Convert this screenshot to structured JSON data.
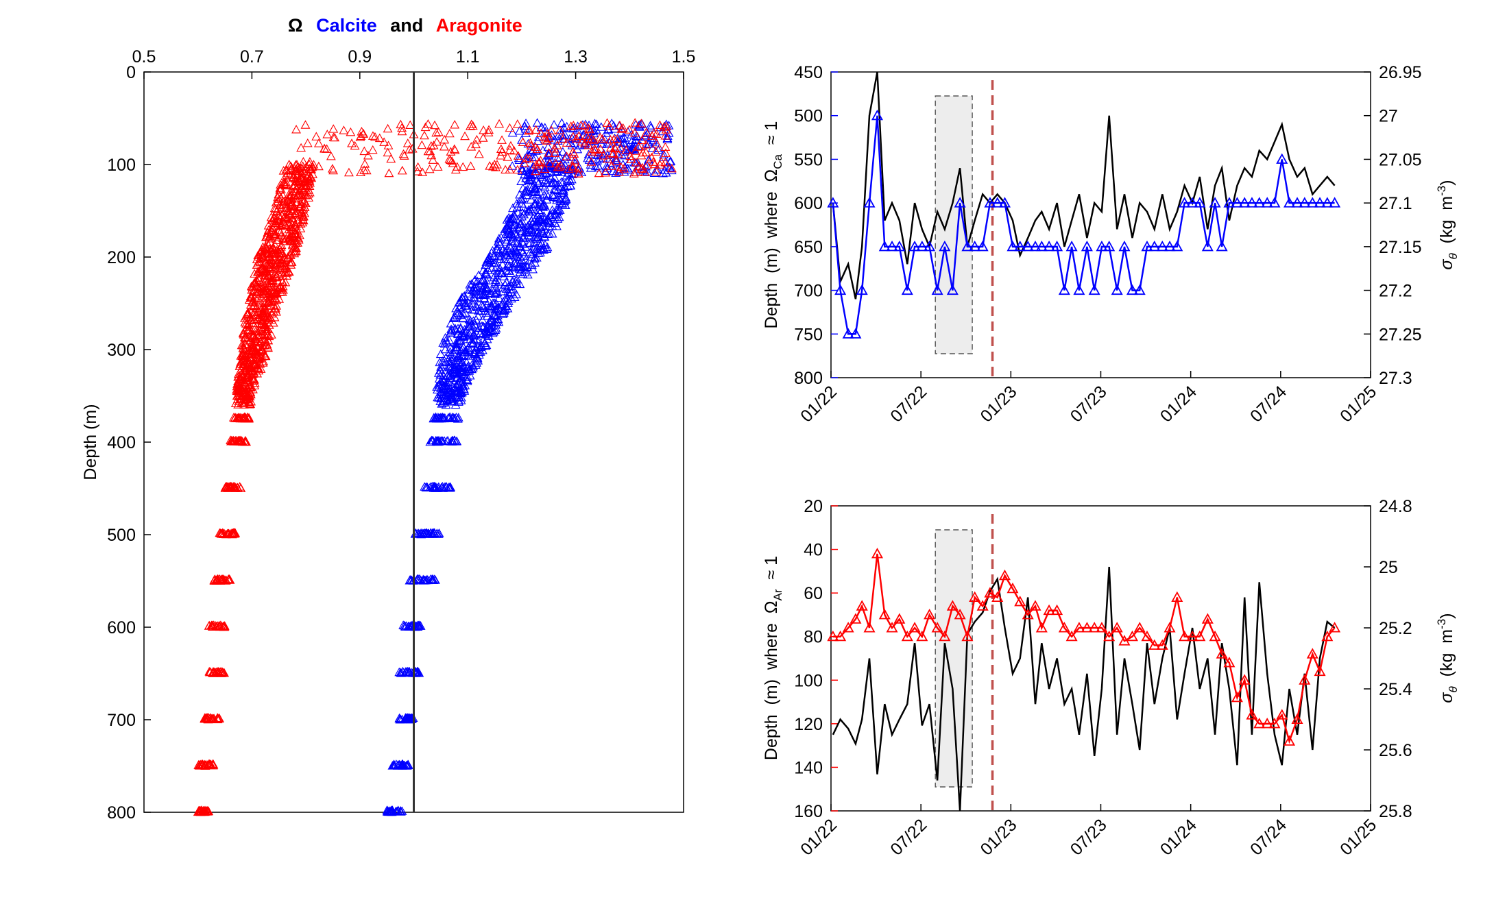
{
  "chart_data": [
    {
      "type": "scatter",
      "title": {
        "omega": "Ω",
        "calcite": "Calcite",
        "and": "and",
        "aragonite": "Aragonite"
      },
      "xlabel": "",
      "ylabel": "Depth (m)",
      "xlim": [
        0.5,
        1.5
      ],
      "ylim": [
        0,
        800
      ],
      "y_reversed": true,
      "x_axis_position": "top",
      "x_ticks": [
        "0.5",
        "0.7",
        "0.9",
        "1.1",
        "1.3",
        "1.5"
      ],
      "y_ticks": [
        "0",
        "100",
        "200",
        "300",
        "400",
        "500",
        "600",
        "700",
        "800"
      ],
      "reference_line_x": 1.0,
      "colors": {
        "calcite": "#0000ff",
        "aragonite": "#ff0000",
        "reference": "#000000"
      },
      "series": [
        {
          "name": "Calcite",
          "color": "#0000ff",
          "marker": "triangle",
          "depth_ranges": [
            [
              80,
              1.2,
              1.48
            ],
            [
              100,
              1.21,
              1.3
            ],
            [
              150,
              1.18,
              1.28
            ],
            [
              200,
              1.14,
              1.24
            ],
            [
              250,
              1.08,
              1.18
            ],
            [
              300,
              1.05,
              1.13
            ],
            [
              350,
              1.04,
              1.09
            ],
            [
              400,
              1.03,
              1.08
            ],
            [
              450,
              1.02,
              1.07
            ],
            [
              500,
              1.0,
              1.05
            ],
            [
              550,
              0.99,
              1.04
            ],
            [
              600,
              0.98,
              1.02
            ],
            [
              650,
              0.97,
              1.01
            ],
            [
              700,
              0.97,
              1.0
            ],
            [
              750,
              0.96,
              0.99
            ],
            [
              800,
              0.95,
              0.98
            ]
          ]
        },
        {
          "name": "Aragonite",
          "color": "#ff0000",
          "marker": "triangle",
          "depth_ranges": [
            [
              80,
              0.78,
              1.48
            ],
            [
              100,
              0.76,
              0.82
            ],
            [
              150,
              0.74,
              0.8
            ],
            [
              200,
              0.71,
              0.78
            ],
            [
              250,
              0.69,
              0.75
            ],
            [
              300,
              0.68,
              0.73
            ],
            [
              350,
              0.67,
              0.7
            ],
            [
              400,
              0.66,
              0.69
            ],
            [
              450,
              0.65,
              0.68
            ],
            [
              500,
              0.64,
              0.67
            ],
            [
              550,
              0.63,
              0.66
            ],
            [
              600,
              0.62,
              0.65
            ],
            [
              650,
              0.62,
              0.65
            ],
            [
              700,
              0.61,
              0.64
            ],
            [
              750,
              0.6,
              0.63
            ],
            [
              800,
              0.6,
              0.62
            ]
          ]
        }
      ]
    },
    {
      "type": "line",
      "x_ticks": [
        "01/22",
        "07/22",
        "01/23",
        "07/23",
        "01/24",
        "07/24",
        "01/25"
      ],
      "ylabel_left": {
        "pre": "Depth  (m)  where  ",
        "omega": "Ω",
        "sub": "Ca",
        "post": "  ≈ 1"
      },
      "ylabel_right": {
        "sigma": "σ",
        "sub": "θ",
        "units": "  (kg  m",
        "exp": "-3",
        "close": ")"
      },
      "ylim_left": [
        450,
        800
      ],
      "ylim_right": [
        26.95,
        27.3
      ],
      "y_ticks_left": [
        "450",
        "500",
        "550",
        "600",
        "650",
        "700",
        "750",
        "800"
      ],
      "y_ticks_right": [
        "26.95",
        "27",
        "27.05",
        "27.1",
        "27.15",
        "27.2",
        "27.25",
        "27.3"
      ],
      "shaded_period": {
        "start": "2022-08",
        "end": "2022-10-15"
      },
      "dashed_line_date": "2022-11-25",
      "series": [
        {
          "name": "",
          "axis": "left",
          "color": "#0000ff",
          "marker": "triangle",
          "x": [
            "2022-01-05",
            "2022-01-20",
            "2022-02-05",
            "2022-02-20",
            "2022-03-05",
            "2022-03-20",
            "2022-04-05",
            "2022-04-20",
            "2022-05-05",
            "2022-05-20",
            "2022-06-05",
            "2022-06-20",
            "2022-07-05",
            "2022-07-20",
            "2022-08-05",
            "2022-08-20",
            "2022-09-05",
            "2022-09-20",
            "2022-10-05",
            "2022-10-20",
            "2022-11-05",
            "2022-11-20",
            "2022-12-05",
            "2022-12-20",
            "2023-01-05",
            "2023-01-20",
            "2023-02-05",
            "2023-02-20",
            "2023-03-05",
            "2023-03-20",
            "2023-04-05",
            "2023-04-20",
            "2023-05-05",
            "2023-05-20",
            "2023-06-05",
            "2023-06-20",
            "2023-07-05",
            "2023-07-20",
            "2023-08-05",
            "2023-08-20",
            "2023-09-05",
            "2023-09-20",
            "2023-10-05",
            "2023-10-20",
            "2023-11-05",
            "2023-11-20",
            "2023-12-05",
            "2023-12-20",
            "2024-01-05",
            "2024-01-20",
            "2024-02-05",
            "2024-02-20",
            "2024-03-05",
            "2024-03-20",
            "2024-04-05",
            "2024-04-20",
            "2024-05-05",
            "2024-05-20",
            "2024-06-05",
            "2024-06-20",
            "2024-07-05",
            "2024-07-20",
            "2024-08-05",
            "2024-08-20",
            "2024-09-05",
            "2024-09-20",
            "2024-10-05",
            "2024-10-20"
          ],
          "y": [
            600,
            700,
            750,
            750,
            700,
            600,
            500,
            650,
            650,
            650,
            700,
            650,
            650,
            650,
            700,
            650,
            700,
            600,
            650,
            650,
            650,
            600,
            600,
            600,
            650,
            650,
            650,
            650,
            650,
            650,
            650,
            700,
            650,
            700,
            650,
            700,
            650,
            650,
            700,
            650,
            700,
            700,
            650,
            650,
            650,
            650,
            650,
            600,
            600,
            600,
            650,
            600,
            650,
            600,
            600,
            600,
            600,
            600,
            600,
            600,
            550,
            600,
            600,
            600,
            600,
            600,
            600,
            600
          ]
        },
        {
          "name": "",
          "axis": "right",
          "color": "#000000",
          "marker": "none",
          "x": [
            "2022-01-05",
            "2022-01-20",
            "2022-02-05",
            "2022-02-20",
            "2022-03-05",
            "2022-03-20",
            "2022-04-05",
            "2022-04-20",
            "2022-05-05",
            "2022-05-20",
            "2022-06-05",
            "2022-06-20",
            "2022-07-05",
            "2022-07-20",
            "2022-08-05",
            "2022-08-20",
            "2022-09-05",
            "2022-09-20",
            "2022-10-05",
            "2022-10-20",
            "2022-11-05",
            "2022-11-20",
            "2022-12-05",
            "2022-12-20",
            "2023-01-05",
            "2023-01-20",
            "2023-02-05",
            "2023-02-20",
            "2023-03-05",
            "2023-03-20",
            "2023-04-05",
            "2023-04-20",
            "2023-05-05",
            "2023-05-20",
            "2023-06-05",
            "2023-06-20",
            "2023-07-05",
            "2023-07-20",
            "2023-08-05",
            "2023-08-20",
            "2023-09-05",
            "2023-09-20",
            "2023-10-05",
            "2023-10-20",
            "2023-11-05",
            "2023-11-20",
            "2023-12-05",
            "2023-12-20",
            "2024-01-05",
            "2024-01-20",
            "2024-02-05",
            "2024-02-20",
            "2024-03-05",
            "2024-03-20",
            "2024-04-05",
            "2024-04-20",
            "2024-05-05",
            "2024-05-20",
            "2024-06-05",
            "2024-06-20",
            "2024-07-05",
            "2024-07-20",
            "2024-08-05",
            "2024-08-20",
            "2024-09-05",
            "2024-09-20",
            "2024-10-05",
            "2024-10-20"
          ],
          "y": [
            27.1,
            27.19,
            27.17,
            27.21,
            27.15,
            27.0,
            26.95,
            27.12,
            27.1,
            27.12,
            27.17,
            27.1,
            27.13,
            27.15,
            27.11,
            27.13,
            27.1,
            27.06,
            27.15,
            27.12,
            27.09,
            27.1,
            27.09,
            27.1,
            27.12,
            27.16,
            27.14,
            27.12,
            27.11,
            27.13,
            27.1,
            27.15,
            27.12,
            27.09,
            27.14,
            27.1,
            27.11,
            27.0,
            27.13,
            27.09,
            27.14,
            27.1,
            27.11,
            27.13,
            27.09,
            27.13,
            27.11,
            27.08,
            27.1,
            27.07,
            27.13,
            27.08,
            27.06,
            27.12,
            27.08,
            27.06,
            27.07,
            27.04,
            27.05,
            27.03,
            27.01,
            27.05,
            27.07,
            27.06,
            27.09,
            27.08,
            27.07,
            27.08
          ]
        }
      ]
    },
    {
      "type": "line",
      "x_ticks": [
        "01/22",
        "07/22",
        "01/23",
        "07/23",
        "01/24",
        "07/24",
        "01/25"
      ],
      "ylabel_left": {
        "pre": "Depth  (m)  where  ",
        "omega": "Ω",
        "sub": "Ar",
        "post": "  ≈ 1"
      },
      "ylabel_right": {
        "sigma": "σ",
        "sub": "θ",
        "units": "  (kg  m",
        "exp": "-3",
        "close": ")"
      },
      "ylim_left": [
        20,
        160
      ],
      "ylim_right": [
        24.8,
        25.8
      ],
      "y_ticks_left": [
        "20",
        "40",
        "60",
        "80",
        "100",
        "120",
        "140",
        "160"
      ],
      "y_ticks_right": [
        "24.8",
        "25",
        "25.2",
        "25.4",
        "25.6",
        "25.8"
      ],
      "shaded_period": {
        "start": "2022-08",
        "end": "2022-10-15"
      },
      "dashed_line_date": "2022-11-25",
      "series": [
        {
          "name": "",
          "axis": "left",
          "color": "#ff0000",
          "marker": "triangle",
          "x": [
            "2022-01-05",
            "2022-01-20",
            "2022-02-05",
            "2022-02-20",
            "2022-03-05",
            "2022-03-20",
            "2022-04-05",
            "2022-04-20",
            "2022-05-05",
            "2022-05-20",
            "2022-06-05",
            "2022-06-20",
            "2022-07-05",
            "2022-07-20",
            "2022-08-05",
            "2022-08-20",
            "2022-09-05",
            "2022-09-20",
            "2022-10-05",
            "2022-10-20",
            "2022-11-05",
            "2022-11-20",
            "2022-12-05",
            "2022-12-20",
            "2023-01-05",
            "2023-01-20",
            "2023-02-05",
            "2023-02-20",
            "2023-03-05",
            "2023-03-20",
            "2023-04-05",
            "2023-04-20",
            "2023-05-05",
            "2023-05-20",
            "2023-06-05",
            "2023-06-20",
            "2023-07-05",
            "2023-07-20",
            "2023-08-05",
            "2023-08-20",
            "2023-09-05",
            "2023-09-20",
            "2023-10-05",
            "2023-10-20",
            "2023-11-05",
            "2023-11-20",
            "2023-12-05",
            "2023-12-20",
            "2024-01-05",
            "2024-01-20",
            "2024-02-05",
            "2024-02-20",
            "2024-03-05",
            "2024-03-20",
            "2024-04-05",
            "2024-04-20",
            "2024-05-05",
            "2024-05-20",
            "2024-06-05",
            "2024-06-20",
            "2024-07-05",
            "2024-07-20",
            "2024-08-05",
            "2024-08-20",
            "2024-09-05",
            "2024-09-20",
            "2024-10-05",
            "2024-10-20"
          ],
          "y": [
            80,
            80,
            76,
            72,
            66,
            76,
            42,
            70,
            76,
            72,
            80,
            76,
            80,
            70,
            76,
            80,
            66,
            70,
            80,
            62,
            66,
            60,
            62,
            52,
            58,
            64,
            70,
            66,
            76,
            68,
            68,
            76,
            80,
            76,
            76,
            76,
            76,
            80,
            76,
            82,
            80,
            76,
            80,
            84,
            84,
            76,
            62,
            80,
            80,
            80,
            72,
            80,
            88,
            92,
            108,
            100,
            116,
            120,
            120,
            120,
            116,
            128,
            118,
            100,
            88,
            96,
            80,
            76
          ]
        },
        {
          "name": "",
          "axis": "right",
          "color": "#000000",
          "marker": "none",
          "x": [
            "2022-01-05",
            "2022-01-20",
            "2022-02-05",
            "2022-02-20",
            "2022-03-05",
            "2022-03-20",
            "2022-04-05",
            "2022-04-20",
            "2022-05-05",
            "2022-05-20",
            "2022-06-05",
            "2022-06-20",
            "2022-07-05",
            "2022-07-20",
            "2022-08-05",
            "2022-08-20",
            "2022-09-05",
            "2022-09-20",
            "2022-10-05",
            "2022-10-20",
            "2022-11-05",
            "2022-11-20",
            "2022-12-05",
            "2022-12-20",
            "2023-01-05",
            "2023-01-20",
            "2023-02-05",
            "2023-02-20",
            "2023-03-05",
            "2023-03-20",
            "2023-04-05",
            "2023-04-20",
            "2023-05-05",
            "2023-05-20",
            "2023-06-05",
            "2023-06-20",
            "2023-07-05",
            "2023-07-20",
            "2023-08-05",
            "2023-08-20",
            "2023-09-05",
            "2023-09-20",
            "2023-10-05",
            "2023-10-20",
            "2023-11-05",
            "2023-11-20",
            "2023-12-05",
            "2023-12-20",
            "2024-01-05",
            "2024-01-20",
            "2024-02-05",
            "2024-02-20",
            "2024-03-05",
            "2024-03-20",
            "2024-04-05",
            "2024-04-20",
            "2024-05-05",
            "2024-05-20",
            "2024-06-05",
            "2024-06-20",
            "2024-07-05",
            "2024-07-20",
            "2024-08-05",
            "2024-08-20",
            "2024-09-05",
            "2024-09-20",
            "2024-10-05",
            "2024-10-20"
          ],
          "y": [
            25.55,
            25.5,
            25.53,
            25.58,
            25.5,
            25.3,
            25.68,
            25.45,
            25.55,
            25.5,
            25.45,
            25.25,
            25.52,
            25.45,
            25.7,
            25.25,
            25.4,
            25.8,
            25.22,
            25.18,
            25.15,
            25.08,
            25.04,
            25.2,
            25.35,
            25.3,
            25.1,
            25.45,
            25.25,
            25.4,
            25.3,
            25.45,
            25.4,
            25.55,
            25.35,
            25.62,
            25.4,
            25.0,
            25.55,
            25.3,
            25.45,
            25.6,
            25.25,
            25.45,
            25.3,
            25.2,
            25.5,
            25.35,
            25.2,
            25.4,
            25.3,
            25.55,
            25.25,
            25.4,
            25.65,
            25.1,
            25.55,
            25.05,
            25.35,
            25.55,
            25.65,
            25.4,
            25.55,
            25.35,
            25.6,
            25.3,
            25.18,
            25.2
          ]
        }
      ]
    }
  ]
}
